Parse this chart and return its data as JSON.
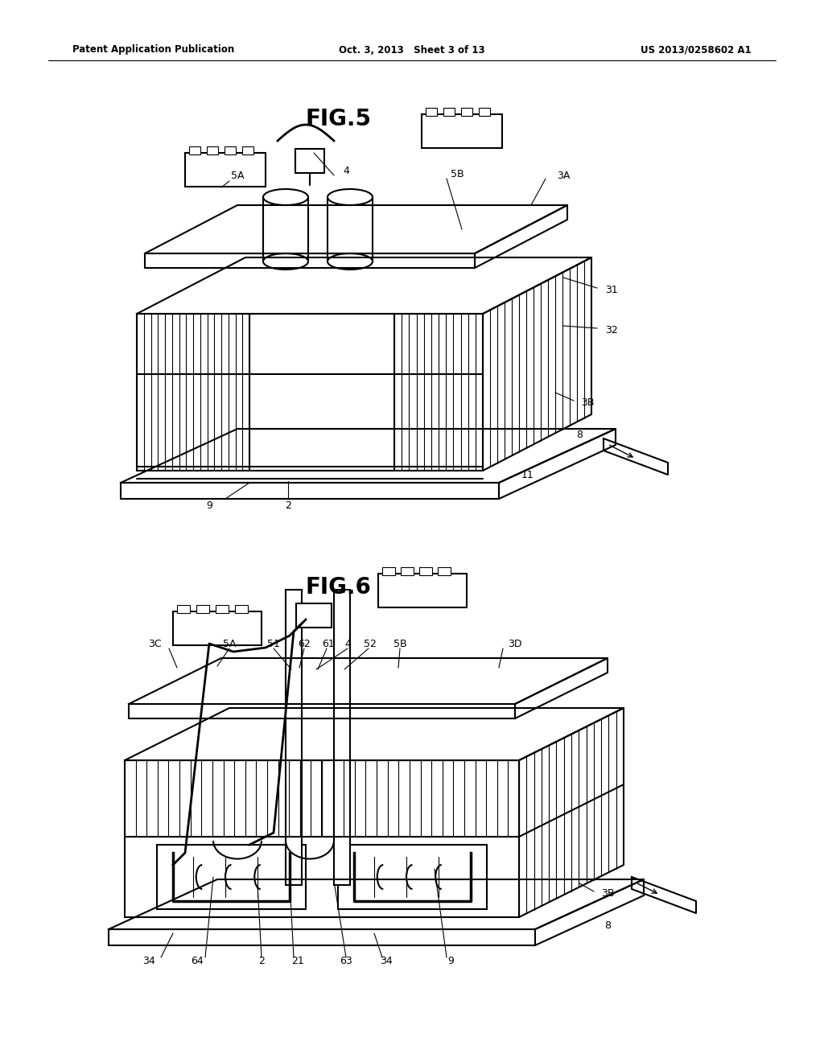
{
  "background_color": "#ffffff",
  "header": {
    "left": "Patent Application Publication",
    "center": "Oct. 3, 2013   Sheet 3 of 13",
    "right": "US 2013/0258602 A1"
  },
  "fig5_title": "FIG.5",
  "fig6_title": "FIG.6",
  "line_color": "#000000",
  "line_width": 1.5,
  "label_fontsize": 9,
  "title_fontsize": 20
}
